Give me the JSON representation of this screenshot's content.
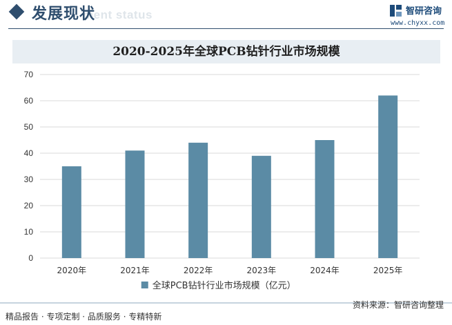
{
  "header": {
    "section_title": "发展现状",
    "section_subtitle": "ment status",
    "brand_name": "智研咨询",
    "brand_url": "www.chyxx.com",
    "accent_color": "#2f4e6e"
  },
  "footer": {
    "left_text": "精品报告 · 专项定制 · 品质服务 · 专精特新",
    "right_text": "资料来源：智研咨询整理"
  },
  "chart_data": {
    "type": "bar",
    "title": "2020-2025年全球PCB钻针行业市场规模",
    "categories": [
      "2020年",
      "2021年",
      "2022年",
      "2023年",
      "2024年",
      "2025年"
    ],
    "series": [
      {
        "name": "全球PCB钻针行业市场规模（亿元）",
        "values": [
          35,
          41,
          44,
          39,
          45,
          62
        ],
        "color": "#5b8ba5"
      }
    ],
    "ylim": [
      0,
      70
    ],
    "yticks": [
      "0",
      "10",
      "20",
      "30",
      "40",
      "50",
      "60",
      "70"
    ],
    "grid": true,
    "legend_position": "bottom"
  }
}
